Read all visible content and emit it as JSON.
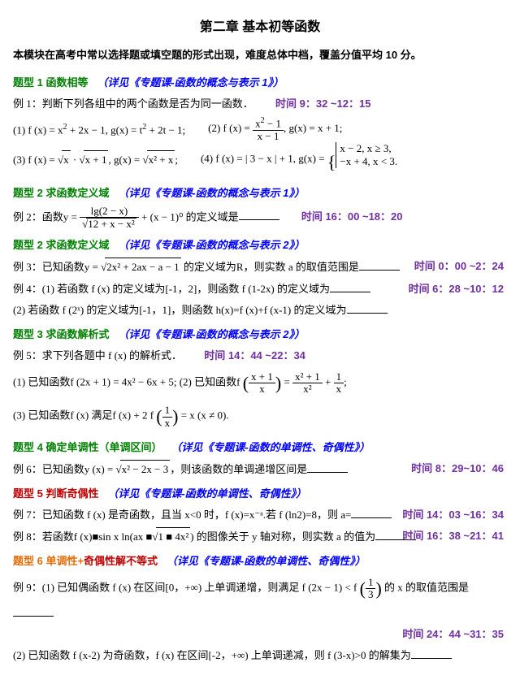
{
  "title": "第二章  基本初等函数",
  "intro": "本模块在高考中常以选择题或填空题的形式出现，难度总体中档，覆盖分值平均 10 分。",
  "topic1": {
    "label": "题型 1  函数相等",
    "ref": "（详见《专题课-函数的概念与表示 1》）"
  },
  "ex1": {
    "t": "例 1：判断下列各组中的两个函数是否为同一函数．",
    "time": "时间 9：32 ~12：15"
  },
  "ex1_1a": "(1) f (x) = x",
  "ex1_1b": " + 2x − 1, g(x) = t",
  "ex1_1c": " + 2t − 1;",
  "ex1_2a": "(2) f (x) = ",
  "ex1_2n": "x",
  "ex1_2n2": " − 1",
  "ex1_2d": "x − 1",
  "ex1_2e": ", g(x) = x + 1;",
  "ex1_3a": "(3) f (x) = ",
  "ex1_3b": " · ",
  "ex1_3c": ", g(x) = ",
  "ex1_3d": ";",
  "ex1_3s1": "x",
  "ex1_3s2": "x + 1",
  "ex1_3s3": "x² + x",
  "ex1_4a": "(4) f (x) = | 3 − x | + 1, g(x) = ",
  "ex1_4b": "x − 2, x ≥ 3,",
  "ex1_4c": "−x + 4, x < 3.",
  "topic2": {
    "label": "题型 2  求函数定义域",
    "ref": "（详见《专题课-函数的概念与表示 1》）"
  },
  "ex2": {
    "t": "例 2：函数y = ",
    "n": "lg(2 − x)",
    "d": "12 + x − x²",
    "tail": " + (x − 1)⁰ 的定义域是",
    "time": "时间 16：00 ~18：20"
  },
  "topic2b": {
    "label": "题型 2  求函数定义域",
    "ref": "（详见《专题课-函数的概念与表示 2》）"
  },
  "ex3": {
    "t": "例 3：已知函数y = ",
    "s": "2x² + 2ax − a − 1",
    "tail": " 的定义域为R，则实数 a 的取值范围是",
    "time": "时间 0：00 ~2：24"
  },
  "ex4": {
    "t": "例 4：(1) 若函数 f (x) 的定义域为[-1，2]，则函数 f (1-2x) 的定义域为",
    "time": "时间 6：28 ~10：12"
  },
  "ex4b": "(2) 若函数 f (2ˣ) 的定义域为[-1，1]，则函数 h(x)=f (x)+f (x-1) 的定义域为",
  "topic3": {
    "label": "题型 3  求函数解析式",
    "ref": "（详见《专题课-函数的概念与表示 2》）"
  },
  "ex5": {
    "t": "例 5：求下列各题中 f (x) 的解析式．",
    "time": "时间 14：44 ~22：34"
  },
  "ex5_1": "(1) 已知函数f (2x + 1) = 4x² − 6x + 5; (2) 已知函数f ",
  "ex5_1n": "x + 1",
  "ex5_1d": "x",
  "ex5_1eq": " = ",
  "ex5_1n2": "x² + 1",
  "ex5_1d2": "x²",
  "ex5_1plus": " + ",
  "ex5_1n3": "1",
  "ex5_1d3": "x",
  "ex5_1end": ";",
  "ex5_3": "(3) 已知函数f (x) 满足f (x) + 2 f ",
  "ex5_3n": "1",
  "ex5_3d": "x",
  "ex5_3tail": " = x (x ≠ 0).",
  "topic4": {
    "label": "题型 4  确定单调性（单调区间）",
    "ref": "（详见《专题课-函数的单调性、奇偶性》）"
  },
  "ex6": {
    "t": "例 6：已知函数y (x) = ",
    "s": "x² − 2x − 3",
    "tail": "，则该函数的单调递增区间是",
    "time": "时间 8：29~10：46"
  },
  "topic5": {
    "label": "题型 5  判断奇偶性",
    "ref": "（详见《专题课-函数的单调性、奇偶性》）"
  },
  "ex7": {
    "t": "例 7：已知函数 f (x) 是奇函数，且当 x<0 时，f (x)=x⁻ᵃ.若 f (ln2)=8，则 a=",
    "time": "时间 14：03 ~16：34"
  },
  "ex8": {
    "t": "例 8：若函数f (x)■sin x ln(ax ■",
    "s": "1 ■ 4x²",
    "tail": ") 的图像关于 y 轴对称，则实数 a 的值为",
    "time": "时间 16：38 ~21：41"
  },
  "topic6": {
    "label": "题型 6  单调性+",
    "label2": "奇偶性解不等式",
    "ref": "（详见《专题课-函数的单调性、奇偶性》）"
  },
  "ex9": {
    "t": "例 9：(1) 已知偶函数 f (x) 在区间[0，+∞) 上单调递增，则满足 f (2x − 1) < f ",
    "n": "1",
    "d": "3",
    "tail": " 的 x 的取值范围是",
    "time": "时间 24：44 ~31：35"
  },
  "ex9b": "(2) 已知函数 f (x-2) 为奇函数，f (x) 在区间[-2，+∞) 上单调递减，则 f (3-x)>0 的解集为"
}
